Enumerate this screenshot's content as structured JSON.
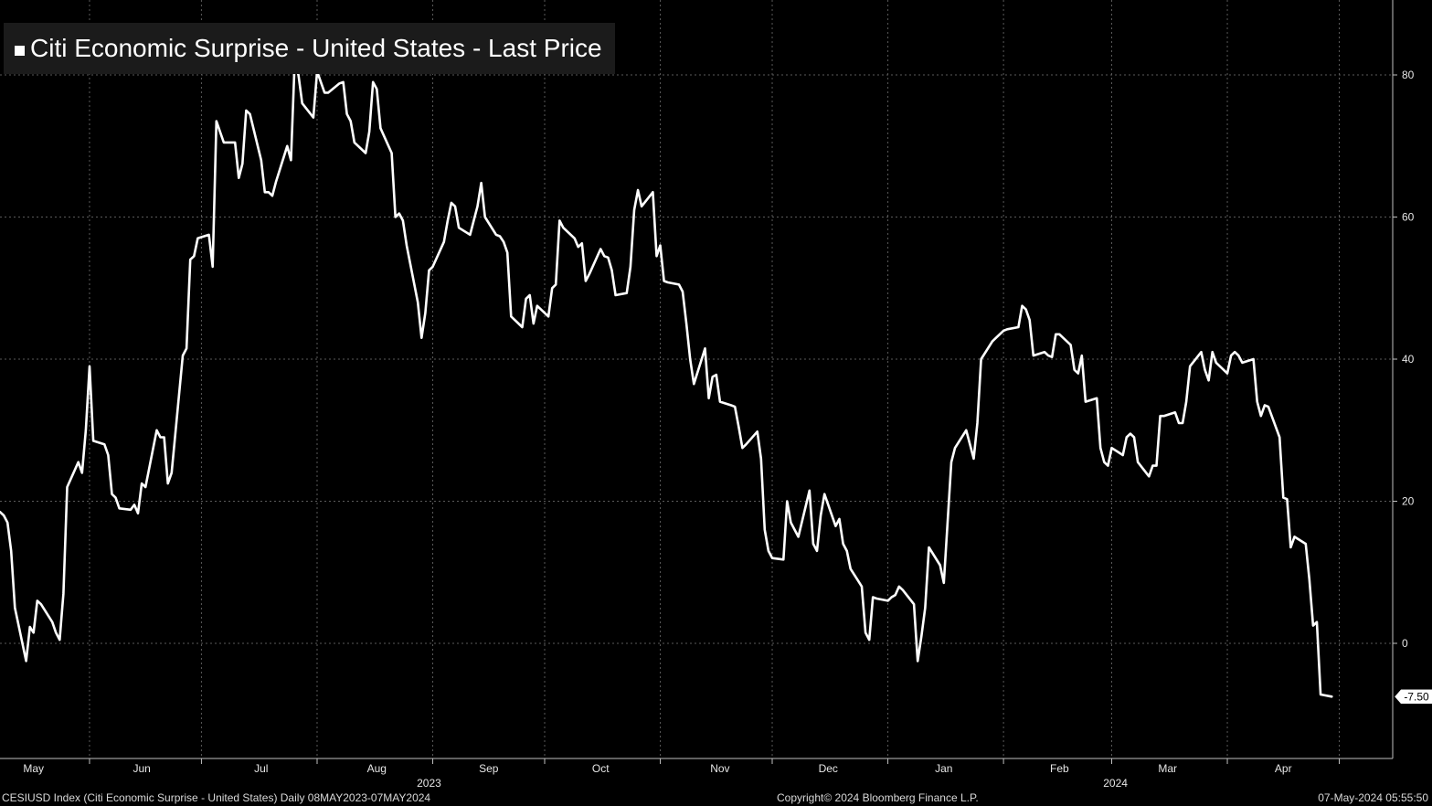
{
  "chart_data": {
    "type": "line",
    "title": "Citi Economic Surprise - United States - Last Price",
    "series": [
      {
        "name": "Citi Economic Surprise - United States - Last Price"
      }
    ],
    "y_ticks": [
      0,
      20,
      40,
      60,
      80
    ],
    "ylim": [
      -16,
      90
    ],
    "last_value_label": "-7.50",
    "month_labels": [
      {
        "label": "May",
        "date": "2023-05-17"
      },
      {
        "label": "Jun",
        "date": "2023-06-15"
      },
      {
        "label": "Jul",
        "date": "2023-07-17"
      },
      {
        "label": "Aug",
        "date": "2023-08-17"
      },
      {
        "label": "Sep",
        "date": "2023-09-16"
      },
      {
        "label": "Oct",
        "date": "2023-10-16"
      },
      {
        "label": "Nov",
        "date": "2023-11-17"
      },
      {
        "label": "Dec",
        "date": "2023-12-16"
      },
      {
        "label": "Jan",
        "date": "2024-01-16"
      },
      {
        "label": "Feb",
        "date": "2024-02-16"
      },
      {
        "label": "Mar",
        "date": "2024-03-16"
      },
      {
        "label": "Apr",
        "date": "2024-04-16"
      }
    ],
    "year_labels": [
      {
        "label": "2023",
        "date": "2023-08-31"
      },
      {
        "label": "2024",
        "date": "2024-03-02"
      }
    ],
    "x_range": [
      "2023-05-08",
      "2024-05-07"
    ],
    "points": [
      [
        "2023-05-08",
        18.5
      ],
      [
        "2023-05-09",
        18.0
      ],
      [
        "2023-05-10",
        17.0
      ],
      [
        "2023-05-11",
        13.0
      ],
      [
        "2023-05-12",
        5.0
      ],
      [
        "2023-05-15",
        -2.5
      ],
      [
        "2023-05-16",
        2.3
      ],
      [
        "2023-05-17",
        1.5
      ],
      [
        "2023-05-18",
        6.0
      ],
      [
        "2023-05-19",
        5.5
      ],
      [
        "2023-05-22",
        3.0
      ],
      [
        "2023-05-23",
        1.5
      ],
      [
        "2023-05-24",
        0.5
      ],
      [
        "2023-05-25",
        7.0
      ],
      [
        "2023-05-26",
        22.0
      ],
      [
        "2023-05-29",
        25.5
      ],
      [
        "2023-05-30",
        24.0
      ],
      [
        "2023-05-31",
        30.0
      ],
      [
        "2023-06-01",
        39.0
      ],
      [
        "2023-06-02",
        28.5
      ],
      [
        "2023-06-05",
        28.0
      ],
      [
        "2023-06-06",
        26.5
      ],
      [
        "2023-06-07",
        21.0
      ],
      [
        "2023-06-08",
        20.5
      ],
      [
        "2023-06-09",
        19.0
      ],
      [
        "2023-06-12",
        18.8
      ],
      [
        "2023-06-13",
        19.5
      ],
      [
        "2023-06-14",
        18.3
      ],
      [
        "2023-06-15",
        22.5
      ],
      [
        "2023-06-16",
        22.0
      ],
      [
        "2023-06-19",
        30.0
      ],
      [
        "2023-06-20",
        29.0
      ],
      [
        "2023-06-21",
        29.0
      ],
      [
        "2023-06-22",
        22.5
      ],
      [
        "2023-06-23",
        24.0
      ],
      [
        "2023-06-26",
        40.5
      ],
      [
        "2023-06-27",
        41.5
      ],
      [
        "2023-06-28",
        54.0
      ],
      [
        "2023-06-29",
        54.5
      ],
      [
        "2023-06-30",
        57.0
      ],
      [
        "2023-07-03",
        57.5
      ],
      [
        "2023-07-04",
        53.0
      ],
      [
        "2023-07-05",
        73.5
      ],
      [
        "2023-07-06",
        72.0
      ],
      [
        "2023-07-07",
        70.5
      ],
      [
        "2023-07-10",
        70.5
      ],
      [
        "2023-07-11",
        65.5
      ],
      [
        "2023-07-12",
        67.5
      ],
      [
        "2023-07-13",
        75.0
      ],
      [
        "2023-07-14",
        74.5
      ],
      [
        "2023-07-17",
        68.0
      ],
      [
        "2023-07-18",
        63.5
      ],
      [
        "2023-07-19",
        63.5
      ],
      [
        "2023-07-20",
        63.0
      ],
      [
        "2023-07-21",
        65.0
      ],
      [
        "2023-07-24",
        70.0
      ],
      [
        "2023-07-25",
        68.0
      ],
      [
        "2023-07-26",
        82.0
      ],
      [
        "2023-07-27",
        80.0
      ],
      [
        "2023-07-28",
        76.0
      ],
      [
        "2023-07-31",
        74.0
      ],
      [
        "2023-08-01",
        80.5
      ],
      [
        "2023-08-02",
        79.0
      ],
      [
        "2023-08-03",
        77.5
      ],
      [
        "2023-08-04",
        77.5
      ],
      [
        "2023-08-07",
        78.8
      ],
      [
        "2023-08-08",
        79.0
      ],
      [
        "2023-08-09",
        74.5
      ],
      [
        "2023-08-10",
        73.5
      ],
      [
        "2023-08-11",
        70.5
      ],
      [
        "2023-08-14",
        69.0
      ],
      [
        "2023-08-15",
        72.0
      ],
      [
        "2023-08-16",
        79.0
      ],
      [
        "2023-08-17",
        78.0
      ],
      [
        "2023-08-18",
        72.5
      ],
      [
        "2023-08-21",
        69.0
      ],
      [
        "2023-08-22",
        60.0
      ],
      [
        "2023-08-23",
        60.5
      ],
      [
        "2023-08-24",
        59.5
      ],
      [
        "2023-08-25",
        56.0
      ],
      [
        "2023-08-28",
        48.0
      ],
      [
        "2023-08-29",
        43.0
      ],
      [
        "2023-08-30",
        46.5
      ],
      [
        "2023-08-31",
        52.5
      ],
      [
        "2023-09-01",
        53.0
      ],
      [
        "2023-09-04",
        56.5
      ],
      [
        "2023-09-05",
        59.5
      ],
      [
        "2023-09-06",
        62.0
      ],
      [
        "2023-09-07",
        61.5
      ],
      [
        "2023-09-08",
        58.5
      ],
      [
        "2023-09-11",
        57.5
      ],
      [
        "2023-09-12",
        59.5
      ],
      [
        "2023-09-13",
        61.5
      ],
      [
        "2023-09-14",
        64.8
      ],
      [
        "2023-09-15",
        60.0
      ],
      [
        "2023-09-18",
        57.5
      ],
      [
        "2023-09-19",
        57.3
      ],
      [
        "2023-09-20",
        56.5
      ],
      [
        "2023-09-21",
        55.0
      ],
      [
        "2023-09-22",
        46.0
      ],
      [
        "2023-09-25",
        44.5
      ],
      [
        "2023-09-26",
        48.5
      ],
      [
        "2023-09-27",
        49.0
      ],
      [
        "2023-09-28",
        45.0
      ],
      [
        "2023-09-29",
        47.5
      ],
      [
        "2023-10-02",
        46.0
      ],
      [
        "2023-10-03",
        50.0
      ],
      [
        "2023-10-04",
        50.5
      ],
      [
        "2023-10-05",
        59.5
      ],
      [
        "2023-10-06",
        58.5
      ],
      [
        "2023-10-09",
        57.0
      ],
      [
        "2023-10-10",
        55.8
      ],
      [
        "2023-10-11",
        56.3
      ],
      [
        "2023-10-12",
        51.0
      ],
      [
        "2023-10-13",
        52.0
      ],
      [
        "2023-10-16",
        55.5
      ],
      [
        "2023-10-17",
        54.5
      ],
      [
        "2023-10-18",
        54.3
      ],
      [
        "2023-10-19",
        52.5
      ],
      [
        "2023-10-20",
        49.0
      ],
      [
        "2023-10-23",
        49.3
      ],
      [
        "2023-10-24",
        53.0
      ],
      [
        "2023-10-25",
        61.0
      ],
      [
        "2023-10-26",
        63.8
      ],
      [
        "2023-10-27",
        61.5
      ],
      [
        "2023-10-30",
        63.5
      ],
      [
        "2023-10-31",
        54.5
      ],
      [
        "2023-11-01",
        56.0
      ],
      [
        "2023-11-02",
        51.0
      ],
      [
        "2023-11-03",
        50.8
      ],
      [
        "2023-11-06",
        50.5
      ],
      [
        "2023-11-07",
        49.5
      ],
      [
        "2023-11-08",
        45.0
      ],
      [
        "2023-11-09",
        40.0
      ],
      [
        "2023-11-10",
        36.5
      ],
      [
        "2023-11-13",
        41.5
      ],
      [
        "2023-11-14",
        34.5
      ],
      [
        "2023-11-15",
        37.5
      ],
      [
        "2023-11-16",
        37.8
      ],
      [
        "2023-11-17",
        34.0
      ],
      [
        "2023-11-20",
        33.5
      ],
      [
        "2023-11-21",
        33.3
      ],
      [
        "2023-11-22",
        30.5
      ],
      [
        "2023-11-23",
        27.5
      ],
      [
        "2023-11-24",
        28.0
      ],
      [
        "2023-11-27",
        29.8
      ],
      [
        "2023-11-28",
        26.0
      ],
      [
        "2023-11-29",
        16.0
      ],
      [
        "2023-11-30",
        13.0
      ],
      [
        "2023-12-01",
        12.0
      ],
      [
        "2023-12-04",
        11.8
      ],
      [
        "2023-12-05",
        20.0
      ],
      [
        "2023-12-06",
        17.0
      ],
      [
        "2023-12-07",
        16.0
      ],
      [
        "2023-12-08",
        15.0
      ],
      [
        "2023-12-11",
        21.5
      ],
      [
        "2023-12-12",
        14.0
      ],
      [
        "2023-12-13",
        13.0
      ],
      [
        "2023-12-14",
        18.0
      ],
      [
        "2023-12-15",
        21.0
      ],
      [
        "2023-12-18",
        16.5
      ],
      [
        "2023-12-19",
        17.5
      ],
      [
        "2023-12-20",
        14.0
      ],
      [
        "2023-12-21",
        13.0
      ],
      [
        "2023-12-22",
        10.5
      ],
      [
        "2023-12-25",
        8.0
      ],
      [
        "2023-12-26",
        1.5
      ],
      [
        "2023-12-27",
        0.5
      ],
      [
        "2023-12-28",
        6.5
      ],
      [
        "2023-12-29",
        6.3
      ],
      [
        "2024-01-01",
        6.0
      ],
      [
        "2024-01-02",
        6.5
      ],
      [
        "2024-01-03",
        6.8
      ],
      [
        "2024-01-04",
        8.0
      ],
      [
        "2024-01-05",
        7.5
      ],
      [
        "2024-01-08",
        5.5
      ],
      [
        "2024-01-09",
        -2.5
      ],
      [
        "2024-01-10",
        1.0
      ],
      [
        "2024-01-11",
        5.0
      ],
      [
        "2024-01-12",
        13.5
      ],
      [
        "2024-01-15",
        11.0
      ],
      [
        "2024-01-16",
        8.5
      ],
      [
        "2024-01-17",
        17.0
      ],
      [
        "2024-01-18",
        25.5
      ],
      [
        "2024-01-19",
        27.5
      ],
      [
        "2024-01-22",
        30.0
      ],
      [
        "2024-01-23",
        28.0
      ],
      [
        "2024-01-24",
        26.0
      ],
      [
        "2024-01-25",
        31.0
      ],
      [
        "2024-01-26",
        40.0
      ],
      [
        "2024-01-29",
        42.5
      ],
      [
        "2024-01-30",
        43.0
      ],
      [
        "2024-01-31",
        43.5
      ],
      [
        "2024-02-01",
        44.0
      ],
      [
        "2024-02-02",
        44.2
      ],
      [
        "2024-02-05",
        44.5
      ],
      [
        "2024-02-06",
        47.5
      ],
      [
        "2024-02-07",
        47.0
      ],
      [
        "2024-02-08",
        45.5
      ],
      [
        "2024-02-09",
        40.5
      ],
      [
        "2024-02-12",
        41.0
      ],
      [
        "2024-02-13",
        40.5
      ],
      [
        "2024-02-14",
        40.3
      ],
      [
        "2024-02-15",
        43.5
      ],
      [
        "2024-02-16",
        43.5
      ],
      [
        "2024-02-19",
        42.0
      ],
      [
        "2024-02-20",
        38.5
      ],
      [
        "2024-02-21",
        38.0
      ],
      [
        "2024-02-22",
        40.5
      ],
      [
        "2024-02-23",
        34.0
      ],
      [
        "2024-02-26",
        34.5
      ],
      [
        "2024-02-27",
        27.5
      ],
      [
        "2024-02-28",
        25.5
      ],
      [
        "2024-02-29",
        25.0
      ],
      [
        "2024-03-01",
        27.5
      ],
      [
        "2024-03-04",
        26.5
      ],
      [
        "2024-03-05",
        29.0
      ],
      [
        "2024-03-06",
        29.5
      ],
      [
        "2024-03-07",
        29.0
      ],
      [
        "2024-03-08",
        25.5
      ],
      [
        "2024-03-11",
        23.5
      ],
      [
        "2024-03-12",
        25.0
      ],
      [
        "2024-03-13",
        25.0
      ],
      [
        "2024-03-14",
        32.0
      ],
      [
        "2024-03-15",
        32.0
      ],
      [
        "2024-03-18",
        32.5
      ],
      [
        "2024-03-19",
        31.0
      ],
      [
        "2024-03-20",
        31.0
      ],
      [
        "2024-03-21",
        34.0
      ],
      [
        "2024-03-22",
        39.0
      ],
      [
        "2024-03-25",
        41.0
      ],
      [
        "2024-03-26",
        38.5
      ],
      [
        "2024-03-27",
        37.0
      ],
      [
        "2024-03-28",
        41.0
      ],
      [
        "2024-03-29",
        39.5
      ],
      [
        "2024-04-01",
        38.0
      ],
      [
        "2024-04-02",
        40.5
      ],
      [
        "2024-04-03",
        41.0
      ],
      [
        "2024-04-04",
        40.5
      ],
      [
        "2024-04-05",
        39.5
      ],
      [
        "2024-04-08",
        40.0
      ],
      [
        "2024-04-09",
        34.0
      ],
      [
        "2024-04-10",
        32.0
      ],
      [
        "2024-04-11",
        33.5
      ],
      [
        "2024-04-12",
        33.3
      ],
      [
        "2024-04-15",
        29.0
      ],
      [
        "2024-04-16",
        20.5
      ],
      [
        "2024-04-17",
        20.3
      ],
      [
        "2024-04-18",
        13.5
      ],
      [
        "2024-04-19",
        15.0
      ],
      [
        "2024-04-22",
        14.0
      ],
      [
        "2024-04-23",
        9.0
      ],
      [
        "2024-04-24",
        2.5
      ],
      [
        "2024-04-25",
        3.0
      ],
      [
        "2024-04-26",
        -7.2
      ],
      [
        "2024-04-29",
        -7.5
      ]
    ]
  },
  "footer": {
    "left": "CESIUSD Index (Citi Economic Surprise - United States)  Daily 08MAY2023-07MAY2024",
    "center": "Copyright© 2024 Bloomberg Finance L.P.",
    "right": "07-May-2024 05:55:50"
  },
  "colors": {
    "background": "#000000",
    "line": "#ffffff",
    "grid": "#5a5a5a",
    "axis": "#bfbfbf"
  }
}
